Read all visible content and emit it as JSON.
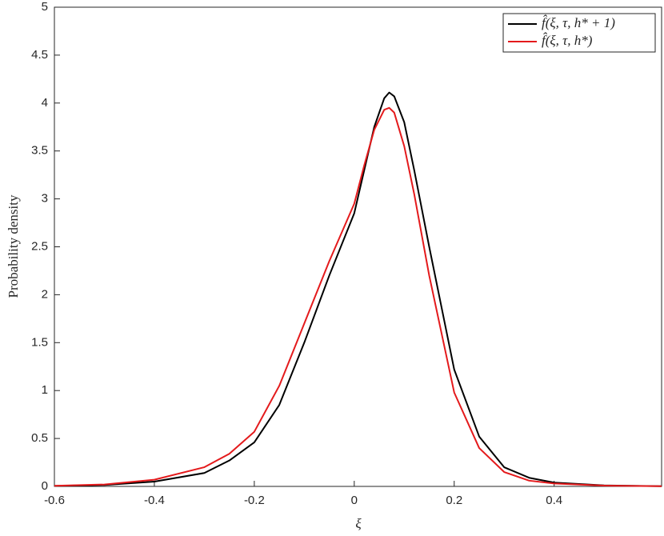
{
  "chart_data": {
    "type": "line",
    "xlabel": "ξ",
    "ylabel": "Probability density",
    "x": [
      -0.6,
      -0.5,
      -0.4,
      -0.3,
      -0.25,
      -0.2,
      -0.15,
      -0.1,
      -0.05,
      0,
      0.02,
      0.04,
      0.06,
      0.07,
      0.08,
      0.1,
      0.12,
      0.15,
      0.2,
      0.25,
      0.3,
      0.35,
      0.4,
      0.5,
      0.615
    ],
    "series": [
      {
        "name": "f̂(ξ, τ, h* + 1)",
        "color": "#000000",
        "values": [
          0.005,
          0.015,
          0.05,
          0.14,
          0.27,
          0.46,
          0.85,
          1.5,
          2.2,
          2.85,
          3.3,
          3.75,
          4.05,
          4.11,
          4.07,
          3.8,
          3.3,
          2.5,
          1.22,
          0.52,
          0.2,
          0.09,
          0.04,
          0.01,
          0.002
        ]
      },
      {
        "name": "f̂(ξ, τ, h*)",
        "color": "#e41a1c",
        "values": [
          0.006,
          0.02,
          0.07,
          0.2,
          0.34,
          0.57,
          1.05,
          1.7,
          2.35,
          2.95,
          3.35,
          3.72,
          3.93,
          3.95,
          3.9,
          3.55,
          3.05,
          2.2,
          0.98,
          0.4,
          0.15,
          0.06,
          0.03,
          0.008,
          0.002
        ]
      }
    ],
    "xlim": [
      -0.6,
      0.615
    ],
    "xticks": [
      -0.6,
      -0.4,
      -0.2,
      0,
      0.2,
      0.4
    ],
    "ylim": [
      0,
      5
    ],
    "yticks": [
      0,
      0.5,
      1,
      1.5,
      2,
      2.5,
      3,
      3.5,
      4,
      4.5,
      5
    ],
    "legend": "top-right"
  }
}
